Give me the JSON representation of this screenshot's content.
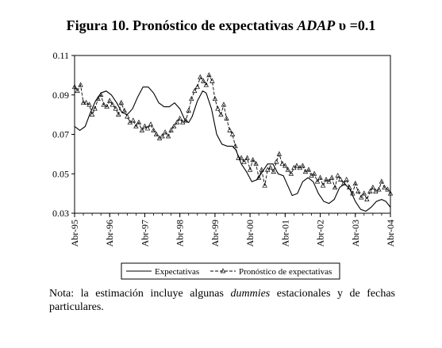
{
  "title": {
    "main": "Figura 10. Pronóstico de expectativas",
    "italic": "ADAP",
    "param": "υ =0.1"
  },
  "note": {
    "before": "Nota: la estimación incluye algunas",
    "italic": "dummies",
    "after": "estacionales y de fechas particulares."
  },
  "chart_data": {
    "type": "line",
    "ylim": [
      0.03,
      0.11
    ],
    "yticks": [
      "0.03",
      "0.05",
      "0.07",
      "0.09",
      "0.11"
    ],
    "xlim": [
      1995.25,
      2004.25
    ],
    "xticks": [
      {
        "x": 1995.25,
        "label": "Abr-95"
      },
      {
        "x": 1996.25,
        "label": "Abr-96"
      },
      {
        "x": 1997.25,
        "label": "Abr-97"
      },
      {
        "x": 1998.25,
        "label": "Abr-98"
      },
      {
        "x": 1999.25,
        "label": "Abr-99"
      },
      {
        "x": 2000.25,
        "label": "Abr-00"
      },
      {
        "x": 2001.25,
        "label": "Abr-01"
      },
      {
        "x": 2002.25,
        "label": "Abr-02"
      },
      {
        "x": 2003.25,
        "label": "Abr-03"
      },
      {
        "x": 2004.25,
        "label": "Abr-04"
      }
    ],
    "legend_position": "bottom",
    "series": [
      {
        "name": "Expectativas",
        "style": "solid",
        "color": "#000000",
        "points": [
          [
            1995.25,
            0.074
          ],
          [
            1995.4,
            0.072
          ],
          [
            1995.55,
            0.074
          ],
          [
            1995.7,
            0.081
          ],
          [
            1995.85,
            0.087
          ],
          [
            1996.0,
            0.091
          ],
          [
            1996.15,
            0.092
          ],
          [
            1996.3,
            0.09
          ],
          [
            1996.45,
            0.086
          ],
          [
            1996.6,
            0.081
          ],
          [
            1996.75,
            0.08
          ],
          [
            1996.9,
            0.083
          ],
          [
            1997.05,
            0.089
          ],
          [
            1997.2,
            0.094
          ],
          [
            1997.35,
            0.094
          ],
          [
            1997.5,
            0.091
          ],
          [
            1997.65,
            0.086
          ],
          [
            1997.8,
            0.084
          ],
          [
            1997.95,
            0.084
          ],
          [
            1998.1,
            0.086
          ],
          [
            1998.25,
            0.083
          ],
          [
            1998.4,
            0.077
          ],
          [
            1998.5,
            0.076
          ],
          [
            1998.6,
            0.079
          ],
          [
            1998.75,
            0.087
          ],
          [
            1998.9,
            0.092
          ],
          [
            1999.0,
            0.091
          ],
          [
            1999.15,
            0.083
          ],
          [
            1999.3,
            0.07
          ],
          [
            1999.45,
            0.065
          ],
          [
            1999.6,
            0.064
          ],
          [
            1999.75,
            0.064
          ],
          [
            1999.85,
            0.062
          ],
          [
            2000.0,
            0.055
          ],
          [
            2000.15,
            0.051
          ],
          [
            2000.3,
            0.046
          ],
          [
            2000.45,
            0.047
          ],
          [
            2000.6,
            0.051
          ],
          [
            2000.75,
            0.055
          ],
          [
            2000.9,
            0.055
          ],
          [
            2001.05,
            0.05
          ],
          [
            2001.2,
            0.049
          ],
          [
            2001.3,
            0.045
          ],
          [
            2001.45,
            0.039
          ],
          [
            2001.6,
            0.04
          ],
          [
            2001.75,
            0.046
          ],
          [
            2001.9,
            0.048
          ],
          [
            2002.05,
            0.046
          ],
          [
            2002.2,
            0.04
          ],
          [
            2002.35,
            0.036
          ],
          [
            2002.5,
            0.035
          ],
          [
            2002.65,
            0.037
          ],
          [
            2002.8,
            0.043
          ],
          [
            2002.95,
            0.045
          ],
          [
            2003.1,
            0.042
          ],
          [
            2003.25,
            0.036
          ],
          [
            2003.4,
            0.032
          ],
          [
            2003.55,
            0.031
          ],
          [
            2003.7,
            0.033
          ],
          [
            2003.85,
            0.036
          ],
          [
            2004.0,
            0.037
          ],
          [
            2004.12,
            0.036
          ],
          [
            2004.25,
            0.033
          ]
        ]
      },
      {
        "name": "Pronóstico de expectativas",
        "style": "dashed",
        "marker": "triangle",
        "color": "#000000",
        "points": [
          [
            1995.25,
            0.094
          ],
          [
            1995.33,
            0.092
          ],
          [
            1995.42,
            0.095
          ],
          [
            1995.5,
            0.086
          ],
          [
            1995.58,
            0.086
          ],
          [
            1995.67,
            0.085
          ],
          [
            1995.75,
            0.08
          ],
          [
            1995.83,
            0.083
          ],
          [
            1995.92,
            0.088
          ],
          [
            1996.0,
            0.09
          ],
          [
            1996.08,
            0.085
          ],
          [
            1996.17,
            0.084
          ],
          [
            1996.25,
            0.087
          ],
          [
            1996.33,
            0.085
          ],
          [
            1996.42,
            0.083
          ],
          [
            1996.5,
            0.08
          ],
          [
            1996.58,
            0.086
          ],
          [
            1996.67,
            0.082
          ],
          [
            1996.75,
            0.079
          ],
          [
            1996.83,
            0.076
          ],
          [
            1996.92,
            0.077
          ],
          [
            1997.0,
            0.074
          ],
          [
            1997.08,
            0.076
          ],
          [
            1997.17,
            0.072
          ],
          [
            1997.25,
            0.074
          ],
          [
            1997.33,
            0.073
          ],
          [
            1997.42,
            0.075
          ],
          [
            1997.5,
            0.072
          ],
          [
            1997.58,
            0.07
          ],
          [
            1997.67,
            0.068
          ],
          [
            1997.75,
            0.069
          ],
          [
            1997.83,
            0.071
          ],
          [
            1997.92,
            0.069
          ],
          [
            1998.0,
            0.072
          ],
          [
            1998.08,
            0.074
          ],
          [
            1998.17,
            0.076
          ],
          [
            1998.25,
            0.078
          ],
          [
            1998.33,
            0.076
          ],
          [
            1998.42,
            0.077
          ],
          [
            1998.5,
            0.082
          ],
          [
            1998.58,
            0.088
          ],
          [
            1998.67,
            0.092
          ],
          [
            1998.75,
            0.094
          ],
          [
            1998.83,
            0.099
          ],
          [
            1998.92,
            0.097
          ],
          [
            1999.0,
            0.095
          ],
          [
            1999.08,
            0.1
          ],
          [
            1999.17,
            0.097
          ],
          [
            1999.25,
            0.088
          ],
          [
            1999.33,
            0.083
          ],
          [
            1999.42,
            0.08
          ],
          [
            1999.5,
            0.085
          ],
          [
            1999.58,
            0.078
          ],
          [
            1999.67,
            0.072
          ],
          [
            1999.75,
            0.07
          ],
          [
            1999.83,
            0.064
          ],
          [
            1999.92,
            0.058
          ],
          [
            2000.0,
            0.058
          ],
          [
            2000.08,
            0.056
          ],
          [
            2000.17,
            0.058
          ],
          [
            2000.25,
            0.052
          ],
          [
            2000.33,
            0.057
          ],
          [
            2000.42,
            0.055
          ],
          [
            2000.5,
            0.048
          ],
          [
            2000.58,
            0.052
          ],
          [
            2000.67,
            0.044
          ],
          [
            2000.75,
            0.052
          ],
          [
            2000.83,
            0.053
          ],
          [
            2000.92,
            0.051
          ],
          [
            2001.0,
            0.056
          ],
          [
            2001.08,
            0.06
          ],
          [
            2001.17,
            0.055
          ],
          [
            2001.25,
            0.054
          ],
          [
            2001.33,
            0.052
          ],
          [
            2001.42,
            0.05
          ],
          [
            2001.5,
            0.053
          ],
          [
            2001.58,
            0.054
          ],
          [
            2001.67,
            0.053
          ],
          [
            2001.75,
            0.054
          ],
          [
            2001.83,
            0.051
          ],
          [
            2001.92,
            0.052
          ],
          [
            2002.0,
            0.049
          ],
          [
            2002.08,
            0.05
          ],
          [
            2002.17,
            0.046
          ],
          [
            2002.25,
            0.048
          ],
          [
            2002.33,
            0.044
          ],
          [
            2002.42,
            0.047
          ],
          [
            2002.5,
            0.046
          ],
          [
            2002.58,
            0.048
          ],
          [
            2002.67,
            0.043
          ],
          [
            2002.75,
            0.049
          ],
          [
            2002.83,
            0.047
          ],
          [
            2002.92,
            0.045
          ],
          [
            2003.0,
            0.047
          ],
          [
            2003.08,
            0.043
          ],
          [
            2003.17,
            0.04
          ],
          [
            2003.25,
            0.045
          ],
          [
            2003.33,
            0.041
          ],
          [
            2003.42,
            0.038
          ],
          [
            2003.5,
            0.04
          ],
          [
            2003.58,
            0.037
          ],
          [
            2003.67,
            0.041
          ],
          [
            2003.75,
            0.043
          ],
          [
            2003.83,
            0.041
          ],
          [
            2003.92,
            0.042
          ],
          [
            2004.0,
            0.046
          ],
          [
            2004.08,
            0.043
          ],
          [
            2004.17,
            0.042
          ],
          [
            2004.25,
            0.04
          ]
        ]
      }
    ]
  }
}
